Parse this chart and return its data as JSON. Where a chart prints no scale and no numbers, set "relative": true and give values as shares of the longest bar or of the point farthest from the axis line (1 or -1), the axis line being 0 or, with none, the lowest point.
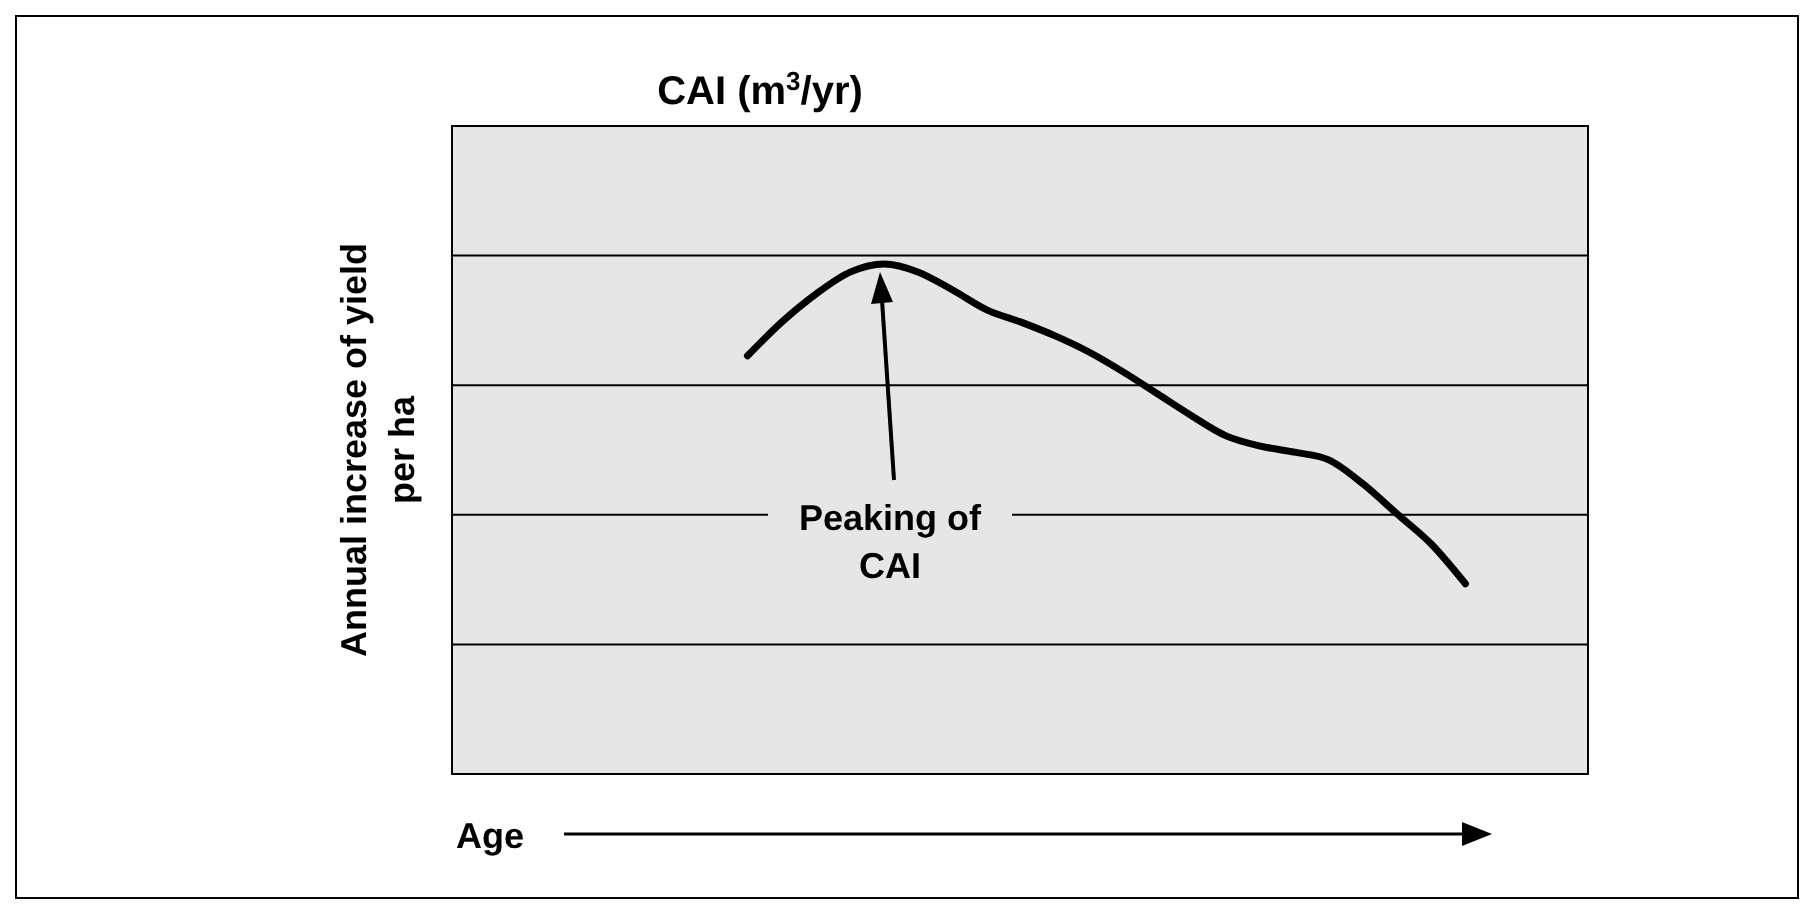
{
  "chart_data": {
    "type": "line",
    "title": "CAI (m$^{3}$/yr)",
    "xlabel": "Age",
    "ylabel": "Annual increase of yield per ha",
    "relative": true,
    "grid": true,
    "marker": "none",
    "line_style": "solid",
    "categories": [
      null,
      null,
      null,
      null,
      null,
      null,
      null,
      null,
      null,
      null,
      null,
      null,
      null,
      null,
      null,
      null,
      null,
      null,
      null,
      null,
      null,
      null,
      null,
      null,
      null,
      null,
      null,
      null,
      null,
      null,
      null,
      null,
      null
    ],
    "series": [
      {
        "color": "#000000",
        "values": [
          null,
          null,
          null,
          null,
          null,
          null,
          null,
          null,
          0.82,
          0.886,
          0.941,
          0.984,
          1,
          0.984,
          0.949,
          0.91,
          0.886,
          0.859,
          0.827,
          0.788,
          0.745,
          0.702,
          0.663,
          0.643,
          0.631,
          0.616,
          0.569,
          0.51,
          0.451,
          0.373,
          null,
          null,
          null
        ]
      }
    ],
    "annotations": [
      "Peaking of\nCAI"
    ]
  }
}
